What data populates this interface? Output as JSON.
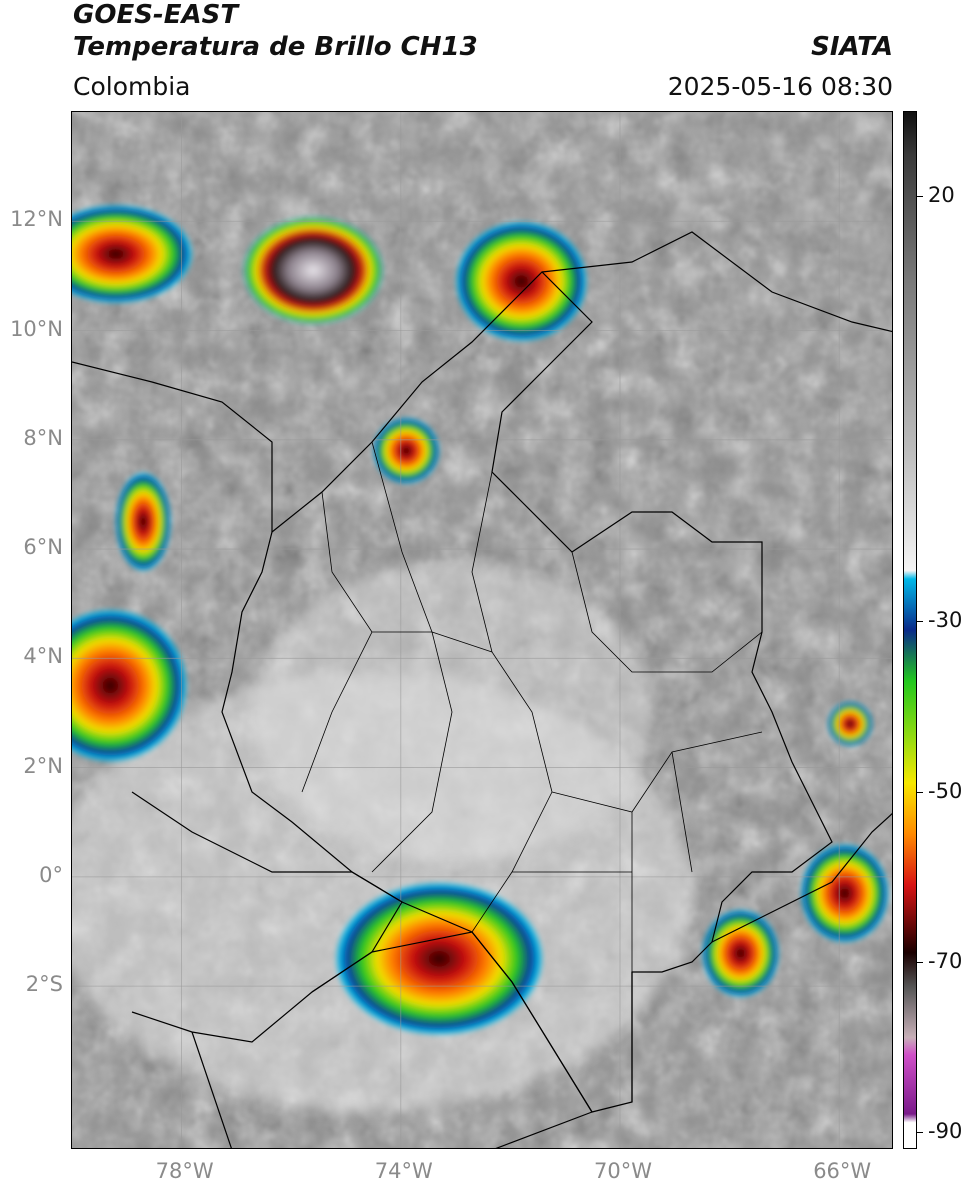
{
  "header": {
    "satellite": "GOES-EAST",
    "product": "Temperatura de Brillo CH13",
    "organization": "SIATA",
    "region": "Colombia",
    "datetime": "2025-05-16 08:30"
  },
  "map": {
    "lon_range": [
      -80,
      -65
    ],
    "lat_range": [
      -5,
      14
    ],
    "lon_ticks": [
      "78°W",
      "74°W",
      "70°W",
      "66°W"
    ],
    "lat_ticks": [
      "12°N",
      "10°N",
      "8°N",
      "6°N",
      "4°N",
      "2°N",
      "0°",
      "2°S"
    ],
    "gridlines": true
  },
  "colorbar": {
    "tick_labels": [
      "20",
      "-30",
      "-50",
      "-70",
      "-90"
    ],
    "tick_values": [
      20,
      -30,
      -50,
      -70,
      -90
    ],
    "range": [
      -92,
      30
    ],
    "colors": {
      "warm": "#e6e6e6",
      "mid": "#7a7a7a",
      "cyan": "#00b8e8",
      "blue": "#0a2a8a",
      "green": "#22c81e",
      "yellow": "#f6e800",
      "orange": "#ff8a00",
      "red": "#d81414",
      "dark": "#1a0000",
      "magenta": "#d050c8",
      "purple": "#7a1a8a"
    }
  },
  "storms": [
    {
      "name": "caribbean-west",
      "lon": -79.2,
      "lat": 11.4,
      "rx": 1.4,
      "ry": 0.9
    },
    {
      "name": "caribbean-central",
      "lon": -75.6,
      "lat": 11.1,
      "rx": 1.3,
      "ry": 1.0
    },
    {
      "name": "guajira",
      "lon": -71.8,
      "lat": 10.9,
      "rx": 1.2,
      "ry": 1.1
    },
    {
      "name": "magdalena",
      "lon": -73.9,
      "lat": 7.8,
      "rx": 0.6,
      "ry": 0.6
    },
    {
      "name": "choco",
      "lon": -78.7,
      "lat": 6.5,
      "rx": 0.5,
      "ry": 0.9
    },
    {
      "name": "pacific",
      "lon": -79.3,
      "lat": 3.5,
      "rx": 1.4,
      "ry": 1.4
    },
    {
      "name": "putumayo",
      "lon": -73.3,
      "lat": -1.5,
      "rx": 1.9,
      "ry": 1.4
    },
    {
      "name": "amazonas-east",
      "lon": -67.8,
      "lat": -1.4,
      "rx": 0.7,
      "ry": 0.8
    },
    {
      "name": "vaupes-east",
      "lon": -65.9,
      "lat": -0.3,
      "rx": 0.8,
      "ry": 0.9
    },
    {
      "name": "guainia",
      "lon": -65.8,
      "lat": 2.8,
      "rx": 0.4,
      "ry": 0.4
    }
  ]
}
